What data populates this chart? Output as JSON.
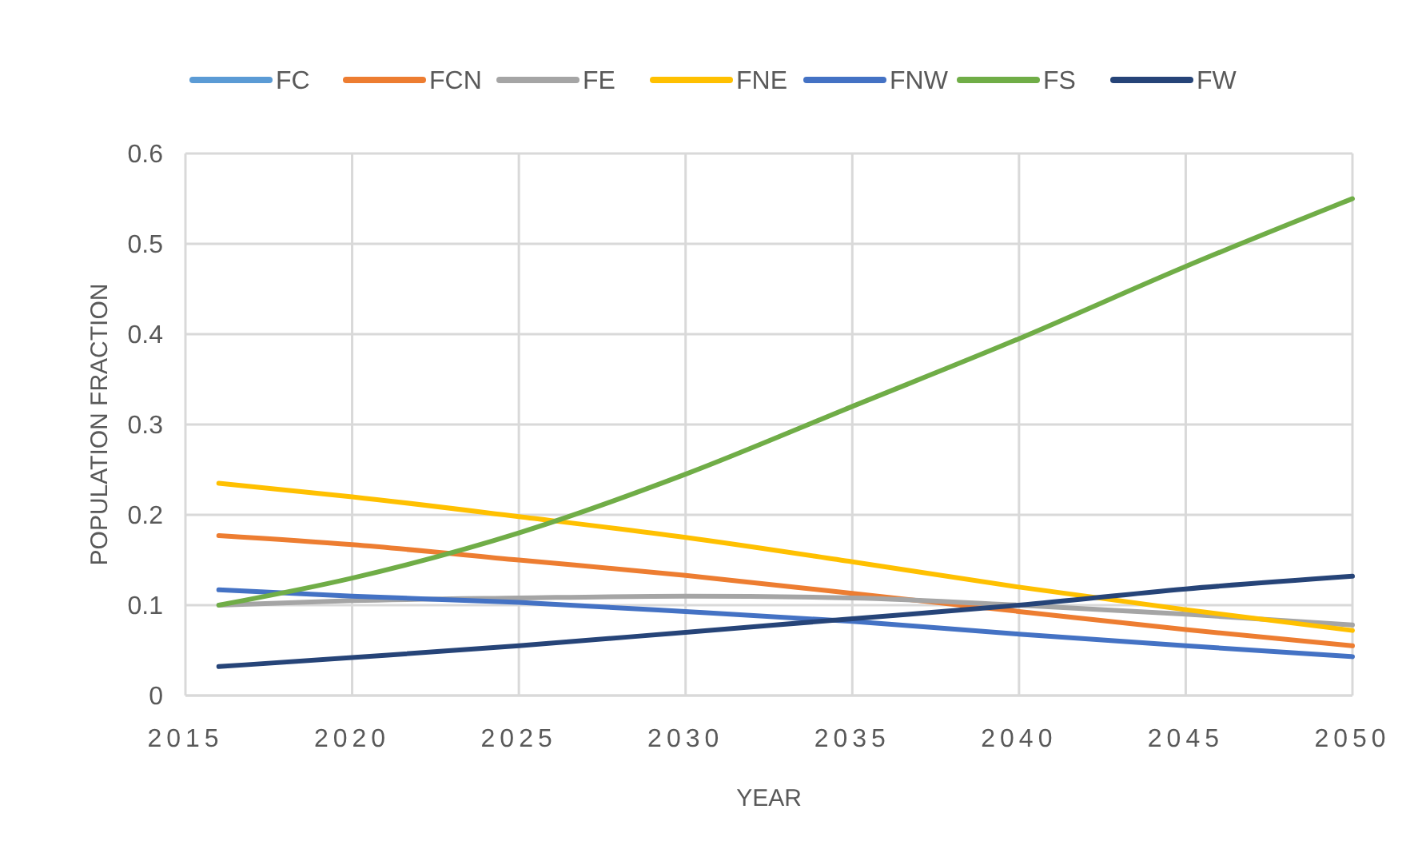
{
  "chart_data": {
    "type": "line",
    "xlabel": "YEAR",
    "ylabel": "POPULATION FRACTION",
    "x": [
      2016,
      2020,
      2025,
      2030,
      2035,
      2040,
      2045,
      2050
    ],
    "series": [
      {
        "name": "FC",
        "color": "#5b9bd5",
        "values": [
          null,
          null,
          null,
          null,
          null,
          null,
          null,
          null
        ]
      },
      {
        "name": "FCN",
        "color": "#ed7d31",
        "values": [
          0.177,
          0.167,
          0.15,
          0.133,
          0.113,
          0.093,
          0.073,
          0.055
        ]
      },
      {
        "name": "FE",
        "color": "#a5a5a5",
        "values": [
          0.1,
          0.105,
          0.108,
          0.11,
          0.108,
          0.1,
          0.09,
          0.078
        ]
      },
      {
        "name": "FNE",
        "color": "#ffc000",
        "values": [
          0.235,
          0.22,
          0.198,
          0.175,
          0.148,
          0.12,
          0.095,
          0.072
        ]
      },
      {
        "name": "FNW",
        "color": "#4472c4",
        "values": [
          0.117,
          0.11,
          0.103,
          0.093,
          0.082,
          0.068,
          0.055,
          0.043
        ]
      },
      {
        "name": "FS",
        "color": "#70ad47",
        "values": [
          0.1,
          0.13,
          0.18,
          0.245,
          0.32,
          0.395,
          0.475,
          0.55
        ]
      },
      {
        "name": "FW",
        "color": "#264478",
        "values": [
          0.032,
          0.042,
          0.055,
          0.07,
          0.085,
          0.1,
          0.118,
          0.132
        ]
      }
    ],
    "xlim": [
      2015,
      2050
    ],
    "xticks": [
      2015,
      2020,
      2025,
      2030,
      2035,
      2040,
      2045,
      2050
    ],
    "ylim": [
      0,
      0.6
    ],
    "yticks": [
      0,
      0.1,
      0.2,
      0.3,
      0.4,
      0.5,
      0.6
    ],
    "grid": true,
    "legend": "top",
    "marker": "none",
    "line_style": "solid"
  }
}
